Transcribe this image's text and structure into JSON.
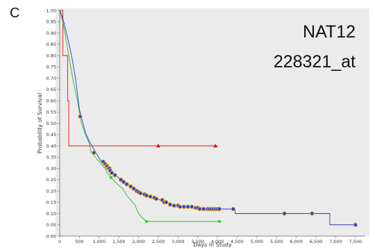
{
  "panel_label": "C",
  "chart_data": {
    "type": "line",
    "subtype": "kaplan-meier",
    "annotations": [
      "NAT12",
      "228321_at"
    ],
    "xlabel": "Days in Study",
    "ylabel": "Probability of Survival",
    "xlim": [
      0,
      7750
    ],
    "ylim": [
      0,
      1.0
    ],
    "x_ticks": [
      0,
      500,
      1000,
      1500,
      2000,
      2500,
      3000,
      3500,
      4000,
      4500,
      5000,
      5500,
      6000,
      6500,
      7000,
      7500
    ],
    "x_tick_labels": [
      "0",
      "500",
      "1,000",
      "1,500",
      "2,000",
      "2,500",
      "3,000",
      "3,500",
      "4,000",
      "4,500",
      "5,000",
      "5,500",
      "6,000",
      "6,500",
      "7,000",
      "7,500"
    ],
    "y_ticks": [
      0,
      0.05,
      0.1,
      0.15,
      0.2,
      0.25,
      0.3,
      0.35,
      0.4,
      0.45,
      0.5,
      0.55,
      0.6,
      0.65,
      0.7,
      0.75,
      0.8,
      0.85,
      0.9,
      0.95,
      1.0
    ],
    "y_tick_labels": [
      "0.00",
      "0.05",
      "0.10",
      "0.15",
      "0.20",
      "0.25",
      "0.30",
      "0.35",
      "0.40",
      "0.45",
      "0.50",
      "0.55",
      "0.60",
      "0.65",
      "0.70",
      "0.75",
      "0.80",
      "0.85",
      "0.90",
      "0.95",
      "1.00"
    ],
    "grid": false,
    "plot_background": "#ebebeb",
    "series": [
      {
        "color": "#e01010",
        "marker": "triangle",
        "marker_color": "#e01010",
        "points": [
          [
            0,
            1.0
          ],
          [
            80,
            1.0
          ],
          [
            80,
            0.8
          ],
          [
            200,
            0.8
          ],
          [
            200,
            0.6
          ],
          [
            230,
            0.6
          ],
          [
            230,
            0.4
          ],
          [
            4000,
            0.4
          ]
        ],
        "censored": [
          [
            2500,
            0.4
          ],
          [
            3950,
            0.4
          ]
        ]
      },
      {
        "color": "#20c020",
        "marker": "circle",
        "marker_color": "#20e020",
        "points": [
          [
            0,
            1.0
          ],
          [
            80,
            0.95
          ],
          [
            150,
            0.88
          ],
          [
            250,
            0.78
          ],
          [
            350,
            0.68
          ],
          [
            450,
            0.6
          ],
          [
            550,
            0.5
          ],
          [
            650,
            0.45
          ],
          [
            750,
            0.41
          ],
          [
            800,
            0.37
          ],
          [
            900,
            0.35
          ],
          [
            1000,
            0.33
          ],
          [
            1150,
            0.3
          ],
          [
            1200,
            0.28
          ],
          [
            1300,
            0.26
          ],
          [
            1400,
            0.24
          ],
          [
            1600,
            0.21
          ],
          [
            1700,
            0.18
          ],
          [
            1900,
            0.14
          ],
          [
            2000,
            0.1
          ],
          [
            2100,
            0.08
          ],
          [
            2200,
            0.065
          ],
          [
            4100,
            0.065
          ]
        ],
        "censored": [
          [
            1300,
            0.26
          ],
          [
            2200,
            0.065
          ],
          [
            4050,
            0.065
          ]
        ]
      },
      {
        "color": "#3030d0",
        "marker": "circle",
        "marker_color": "#2040e0",
        "censored_halo_color": "#f0b020",
        "points": [
          [
            0,
            1.0
          ],
          [
            30,
            0.99
          ],
          [
            100,
            0.95
          ],
          [
            200,
            0.88
          ],
          [
            300,
            0.8
          ],
          [
            400,
            0.7
          ],
          [
            500,
            0.56
          ],
          [
            560,
            0.52
          ],
          [
            650,
            0.46
          ],
          [
            750,
            0.42
          ],
          [
            850,
            0.39
          ],
          [
            950,
            0.36
          ],
          [
            1050,
            0.33
          ],
          [
            1150,
            0.31
          ],
          [
            1250,
            0.3
          ],
          [
            1350,
            0.28
          ],
          [
            1450,
            0.265
          ],
          [
            1550,
            0.25
          ],
          [
            1650,
            0.24
          ],
          [
            1750,
            0.225
          ],
          [
            1850,
            0.21
          ],
          [
            1950,
            0.2
          ],
          [
            2100,
            0.19
          ],
          [
            2250,
            0.18
          ],
          [
            2400,
            0.17
          ],
          [
            2550,
            0.16
          ],
          [
            2700,
            0.15
          ],
          [
            2850,
            0.14
          ],
          [
            3000,
            0.135
          ],
          [
            3300,
            0.13
          ],
          [
            3600,
            0.125
          ],
          [
            4000,
            0.12
          ],
          [
            4450,
            0.12
          ],
          [
            4450,
            0.1
          ],
          [
            6850,
            0.1
          ],
          [
            6850,
            0.05
          ],
          [
            7550,
            0.05
          ]
        ],
        "censored": [
          [
            520,
            0.53
          ],
          [
            870,
            0.37
          ],
          [
            1100,
            0.33
          ],
          [
            1150,
            0.32
          ],
          [
            1180,
            0.31
          ],
          [
            1200,
            0.31
          ],
          [
            1230,
            0.3
          ],
          [
            1260,
            0.3
          ],
          [
            1280,
            0.29
          ],
          [
            1320,
            0.28
          ],
          [
            1400,
            0.27
          ],
          [
            1550,
            0.25
          ],
          [
            1620,
            0.24
          ],
          [
            1700,
            0.23
          ],
          [
            1800,
            0.22
          ],
          [
            1880,
            0.21
          ],
          [
            1950,
            0.2
          ],
          [
            2000,
            0.195
          ],
          [
            2050,
            0.19
          ],
          [
            2150,
            0.185
          ],
          [
            2200,
            0.18
          ],
          [
            2300,
            0.175
          ],
          [
            2400,
            0.17
          ],
          [
            2450,
            0.165
          ],
          [
            2600,
            0.16
          ],
          [
            2650,
            0.15
          ],
          [
            2700,
            0.15
          ],
          [
            2800,
            0.14
          ],
          [
            2900,
            0.135
          ],
          [
            3000,
            0.135
          ],
          [
            3050,
            0.13
          ],
          [
            3150,
            0.13
          ],
          [
            3250,
            0.13
          ],
          [
            3350,
            0.13
          ],
          [
            3450,
            0.125
          ],
          [
            3500,
            0.125
          ],
          [
            3550,
            0.12
          ],
          [
            3650,
            0.12
          ],
          [
            3750,
            0.12
          ],
          [
            3800,
            0.12
          ],
          [
            3850,
            0.12
          ],
          [
            3900,
            0.12
          ],
          [
            3950,
            0.12
          ],
          [
            4000,
            0.12
          ],
          [
            4050,
            0.12
          ],
          [
            4400,
            0.12
          ],
          [
            5700,
            0.1
          ],
          [
            6400,
            0.1
          ],
          [
            7500,
            0.05
          ]
        ]
      }
    ]
  }
}
